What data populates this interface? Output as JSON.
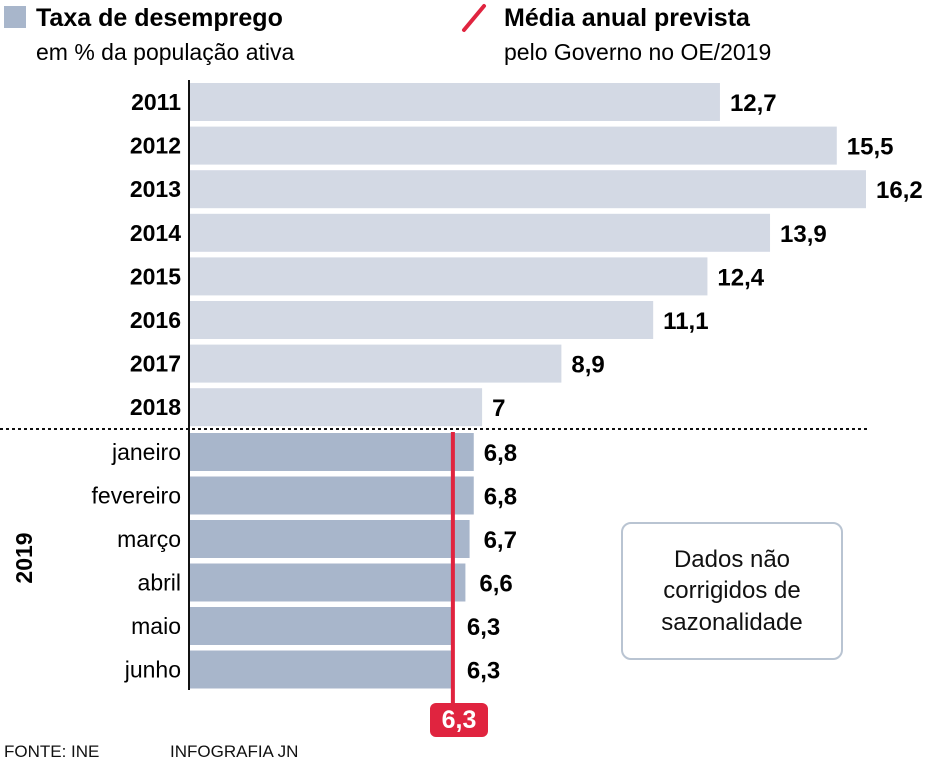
{
  "legend": {
    "series_title": "Taxa de desemprego",
    "series_subtitle": "em % da população ativa",
    "target_title": "Média anual prevista",
    "target_subtitle": "pelo Governo no OE/2019"
  },
  "year_group_label": "2019",
  "note": [
    "Dados não",
    "corrigidos de",
    "sazonalidade"
  ],
  "footer": {
    "source": "FONTE: INE",
    "credit": "INFOGRAFIA JN"
  },
  "colors": {
    "annual": "#d3d9e4",
    "monthly": "#a8b6cb",
    "target": "#e0243f"
  },
  "chart_data": {
    "type": "bar",
    "orientation": "horizontal",
    "categories": [
      "2011",
      "2012",
      "2013",
      "2014",
      "2015",
      "2016",
      "2017",
      "2018",
      "janeiro",
      "fevereiro",
      "março",
      "abril",
      "maio",
      "junho"
    ],
    "values": [
      12.7,
      15.5,
      16.2,
      13.9,
      12.4,
      11.1,
      8.9,
      7,
      6.8,
      6.8,
      6.7,
      6.6,
      6.3,
      6.3
    ],
    "value_labels": [
      "12,7",
      "15,5",
      "16,2",
      "13,9",
      "12,4",
      "11,1",
      "8,9",
      "7",
      "6,8",
      "6,8",
      "6,7",
      "6,6",
      "6,3",
      "6,3"
    ],
    "groups": {
      "annual": [
        0,
        7
      ],
      "monthly_2019": [
        8,
        13
      ]
    },
    "reference_line": {
      "value": 6.3,
      "label": "6,3"
    },
    "xlim": [
      0,
      16.2
    ]
  }
}
